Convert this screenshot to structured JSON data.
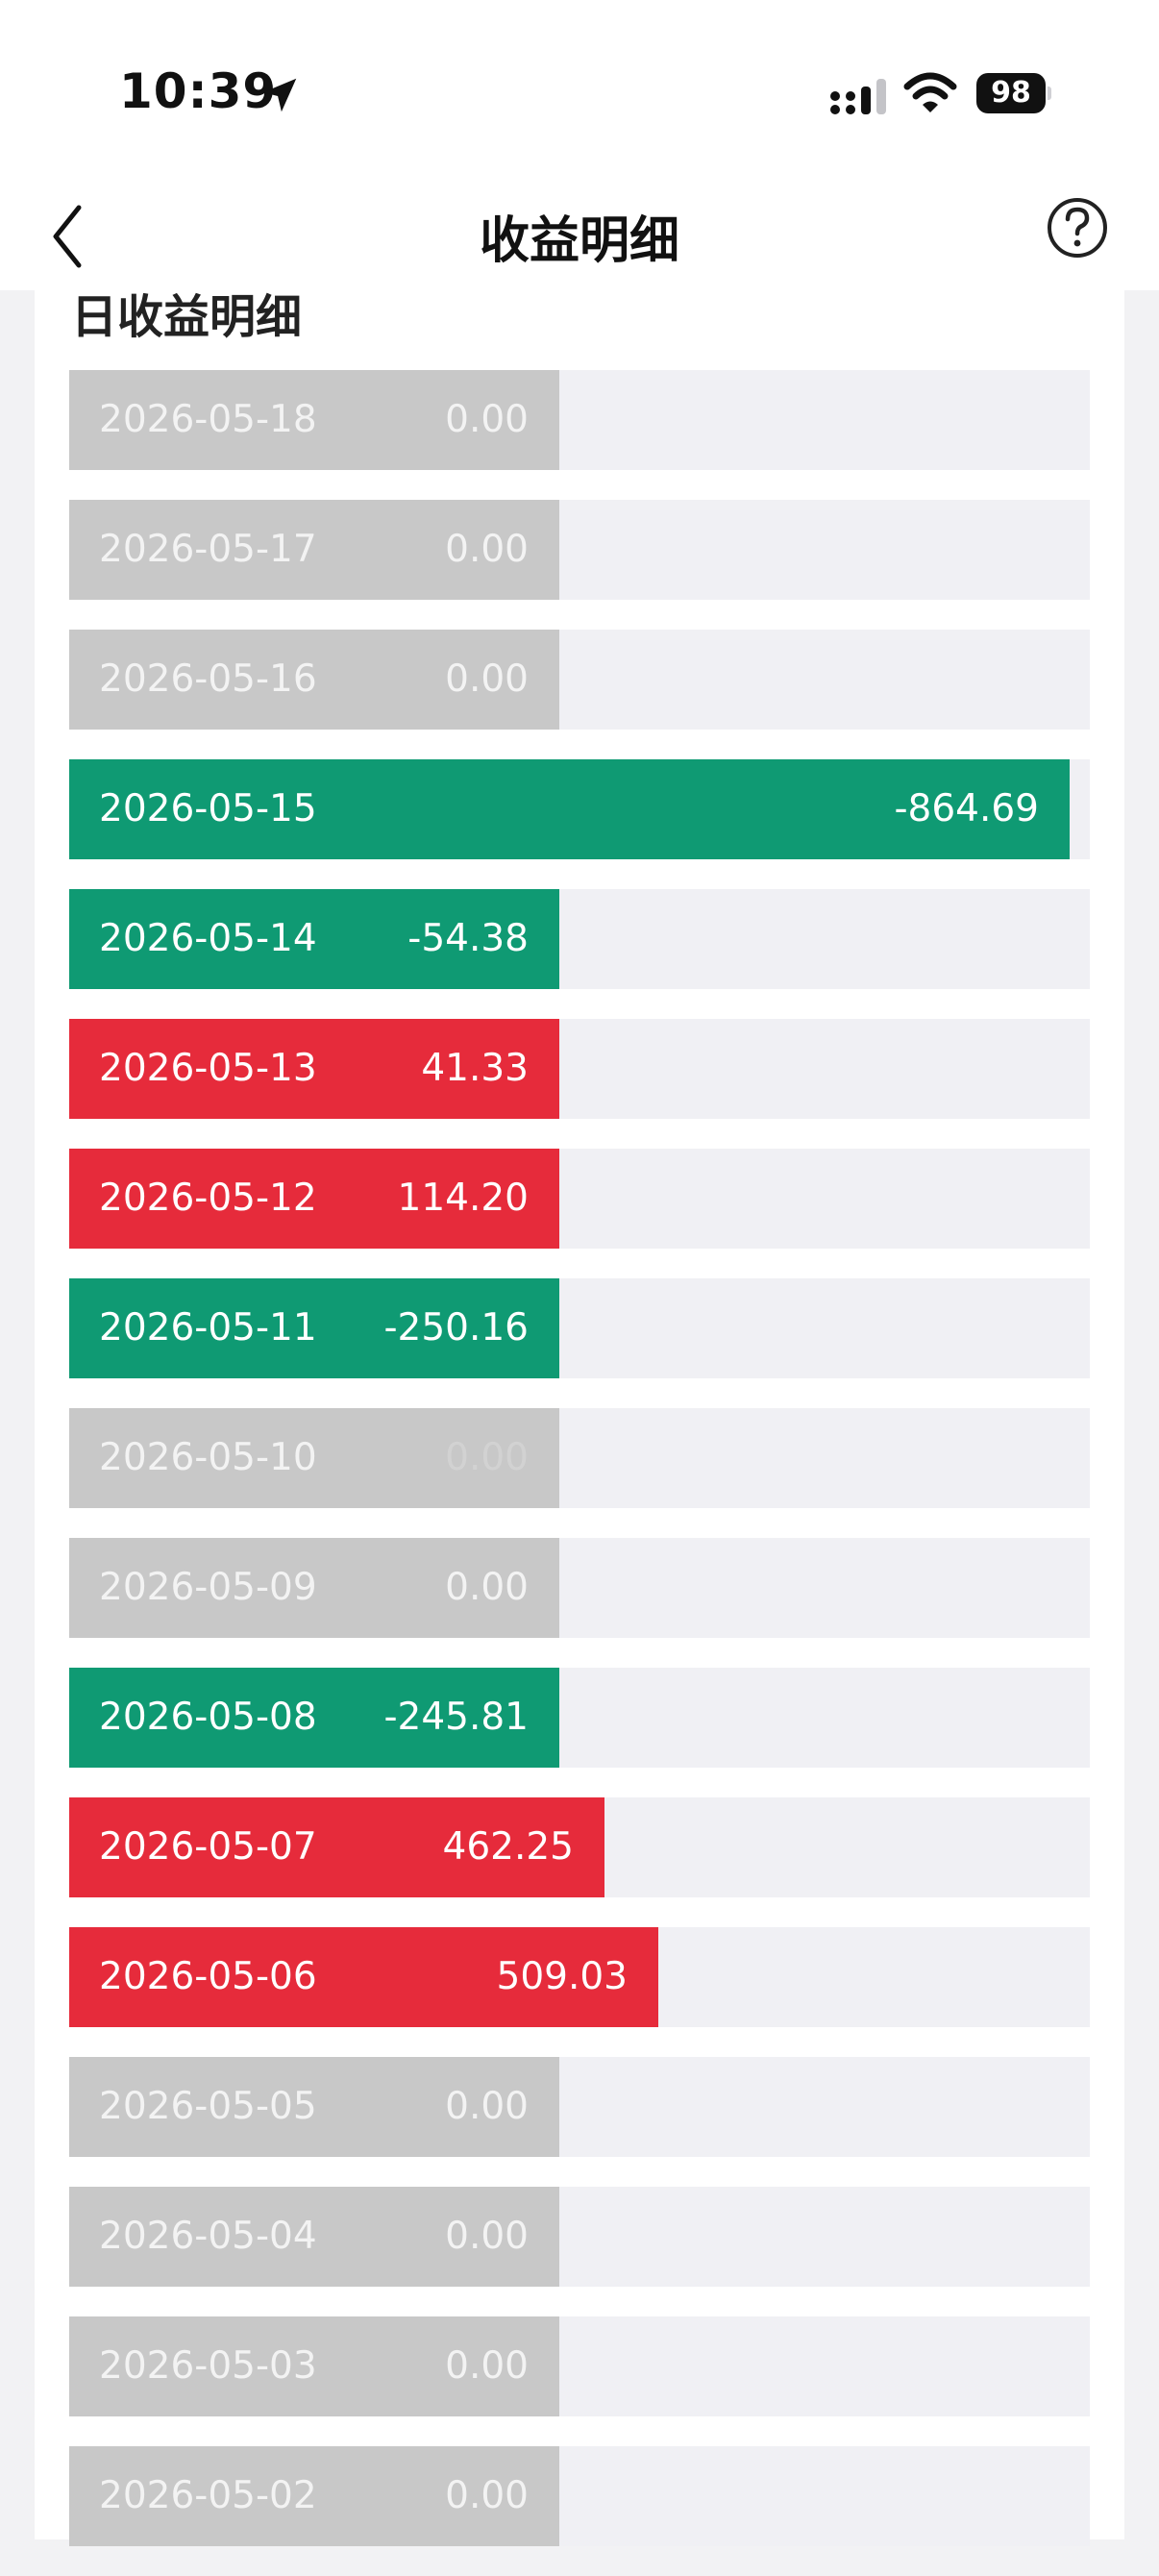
{
  "status_bar": {
    "time": "10:39",
    "battery": "98",
    "icons": [
      "location-arrow-icon",
      "signal-icon",
      "wifi-icon",
      "battery-icon"
    ]
  },
  "nav": {
    "title": "收益明细",
    "back_icon": "chevron-left-icon",
    "help_icon": "question-circle-icon"
  },
  "section_title": "日收益明细",
  "colors": {
    "positive": "#e62b3b",
    "negative": "#0f9a73",
    "zero": "#c8c8c8",
    "track": "#f0f0f4"
  },
  "max_abs_value": 864.69,
  "days": [
    {
      "date": "2026-05-18",
      "value": "0.00",
      "amount": 0
    },
    {
      "date": "2026-05-17",
      "value": "0.00",
      "amount": 0
    },
    {
      "date": "2026-05-16",
      "value": "0.00",
      "amount": 0
    },
    {
      "date": "2026-05-15",
      "value": "-864.69",
      "amount": -864.69
    },
    {
      "date": "2026-05-14",
      "value": "-54.38",
      "amount": -54.38
    },
    {
      "date": "2026-05-13",
      "value": "41.33",
      "amount": 41.33
    },
    {
      "date": "2026-05-12",
      "value": "114.20",
      "amount": 114.2
    },
    {
      "date": "2026-05-11",
      "value": "-250.16",
      "amount": -250.16
    },
    {
      "date": "2026-05-10",
      "value": "0.00",
      "amount": 0,
      "faint": true
    },
    {
      "date": "2026-05-09",
      "value": "0.00",
      "amount": 0
    },
    {
      "date": "2026-05-08",
      "value": "-245.81",
      "amount": -245.81
    },
    {
      "date": "2026-05-07",
      "value": "462.25",
      "amount": 462.25
    },
    {
      "date": "2026-05-06",
      "value": "509.03",
      "amount": 509.03
    },
    {
      "date": "2026-05-05",
      "value": "0.00",
      "amount": 0
    },
    {
      "date": "2026-05-04",
      "value": "0.00",
      "amount": 0
    },
    {
      "date": "2026-05-03",
      "value": "0.00",
      "amount": 0
    },
    {
      "date": "2026-05-02",
      "value": "0.00",
      "amount": 0
    }
  ]
}
